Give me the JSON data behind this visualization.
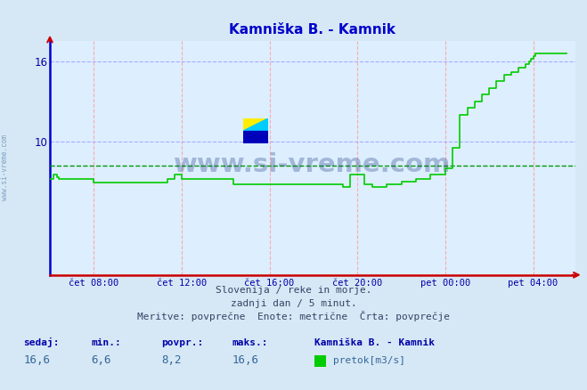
{
  "title": "Kamniška B. - Kamnik",
  "bg_color": "#d6e8f5",
  "plot_bg_color": "#ddeeff",
  "line_color": "#00cc00",
  "dashed_avg_color": "#009900",
  "dashed_avg_value": 8.2,
  "grid_v_color": "#ffaaaa",
  "grid_h_color": "#aaaaff",
  "axis_bottom_color": "#cc0000",
  "axis_left_color": "#0000cc",
  "title_color": "#0000cc",
  "tick_label_color": "#0000aa",
  "yticks": [
    10,
    16
  ],
  "ylim_min": 0,
  "ylim_max": 17.5,
  "xlim_min": 0,
  "xlim_max": 287,
  "tick_positions": [
    24,
    72,
    120,
    168,
    216,
    264
  ],
  "xlabel_ticks": [
    "čet 08:00",
    "čet 12:00",
    "čet 16:00",
    "čet 20:00",
    "pet 00:00",
    "pet 04:00"
  ],
  "footer_line1": "Slovenija / reke in morje.",
  "footer_line2": "zadnji dan / 5 minut.",
  "footer_line3": "Meritve: povprečne  Enote: metrične  Črta: povprečje",
  "stat_labels": [
    "sedaj:",
    "min.:",
    "povpr.:",
    "maks.:"
  ],
  "stat_values": [
    "16,6",
    "6,6",
    "8,2",
    "16,6"
  ],
  "legend_title": "Kamniška B. - Kamnik",
  "legend_item": "pretok[m3/s]",
  "legend_color": "#00cc00",
  "watermark_text": "www.si-vreme.com",
  "watermark_color": "#1a3a7e",
  "watermark_alpha": 0.3,
  "side_text": "www.si-vreme.com",
  "logo_yellow": "#ffee00",
  "logo_cyan": "#00ccff",
  "logo_blue": "#0000bb",
  "data_y": [
    7.2,
    7.2,
    7.5,
    7.5,
    7.3,
    7.2,
    7.2,
    7.2,
    7.2,
    7.2,
    7.2,
    7.2,
    7.2,
    7.2,
    7.2,
    7.2,
    7.2,
    7.2,
    7.2,
    7.2,
    7.2,
    7.2,
    7.2,
    7.2,
    6.9,
    6.9,
    6.9,
    6.9,
    6.9,
    6.9,
    6.9,
    6.9,
    6.9,
    6.9,
    6.9,
    6.9,
    6.9,
    6.9,
    6.9,
    6.9,
    6.9,
    6.9,
    6.9,
    6.9,
    6.9,
    6.9,
    6.9,
    6.9,
    6.9,
    6.9,
    6.9,
    6.9,
    6.9,
    6.9,
    6.9,
    6.9,
    6.9,
    6.9,
    6.9,
    6.9,
    6.9,
    6.9,
    6.9,
    6.9,
    7.2,
    7.2,
    7.2,
    7.2,
    7.5,
    7.5,
    7.5,
    7.5,
    7.2,
    7.2,
    7.2,
    7.2,
    7.2,
    7.2,
    7.2,
    7.2,
    7.2,
    7.2,
    7.2,
    7.2,
    7.2,
    7.2,
    7.2,
    7.2,
    7.2,
    7.2,
    7.2,
    7.2,
    7.2,
    7.2,
    7.2,
    7.2,
    7.2,
    7.2,
    7.2,
    7.2,
    6.8,
    6.8,
    6.8,
    6.8,
    6.8,
    6.8,
    6.8,
    6.8,
    6.8,
    6.8,
    6.8,
    6.8,
    6.8,
    6.8,
    6.8,
    6.8,
    6.8,
    6.8,
    6.8,
    6.8,
    6.8,
    6.8,
    6.8,
    6.8,
    6.8,
    6.8,
    6.8,
    6.8,
    6.8,
    6.8,
    6.8,
    6.8,
    6.8,
    6.8,
    6.8,
    6.8,
    6.8,
    6.8,
    6.8,
    6.8,
    6.8,
    6.8,
    6.8,
    6.8,
    6.8,
    6.8,
    6.8,
    6.8,
    6.8,
    6.8,
    6.8,
    6.8,
    6.8,
    6.8,
    6.8,
    6.8,
    6.8,
    6.8,
    6.8,
    6.8,
    6.6,
    6.6,
    6.6,
    6.6,
    7.5,
    7.5,
    7.5,
    7.5,
    7.5,
    7.5,
    7.5,
    7.5,
    6.8,
    6.8,
    6.8,
    6.8,
    6.6,
    6.6,
    6.6,
    6.6,
    6.6,
    6.6,
    6.6,
    6.6,
    6.8,
    6.8,
    6.8,
    6.8,
    6.8,
    6.8,
    6.8,
    6.8,
    7.0,
    7.0,
    7.0,
    7.0,
    7.0,
    7.0,
    7.0,
    7.0,
    7.2,
    7.2,
    7.2,
    7.2,
    7.2,
    7.2,
    7.2,
    7.2,
    7.5,
    7.5,
    7.5,
    7.5,
    7.5,
    7.5,
    7.5,
    7.5,
    8.0,
    8.0,
    8.0,
    8.0,
    9.5,
    9.5,
    9.5,
    9.5,
    12.0,
    12.0,
    12.0,
    12.0,
    12.5,
    12.5,
    12.5,
    12.5,
    13.0,
    13.0,
    13.0,
    13.0,
    13.5,
    13.5,
    13.5,
    13.5,
    14.0,
    14.0,
    14.0,
    14.0,
    14.5,
    14.5,
    14.5,
    14.5,
    15.0,
    15.0,
    15.0,
    15.0,
    15.2,
    15.2,
    15.2,
    15.2,
    15.5,
    15.5,
    15.5,
    15.5,
    15.8,
    15.8,
    16.0,
    16.2,
    16.4,
    16.6,
    16.6,
    16.6,
    16.6,
    16.6,
    16.6,
    16.6,
    16.6,
    16.6,
    16.6,
    16.6,
    16.6,
    16.6,
    16.6,
    16.6,
    16.6,
    16.6,
    16.6
  ]
}
